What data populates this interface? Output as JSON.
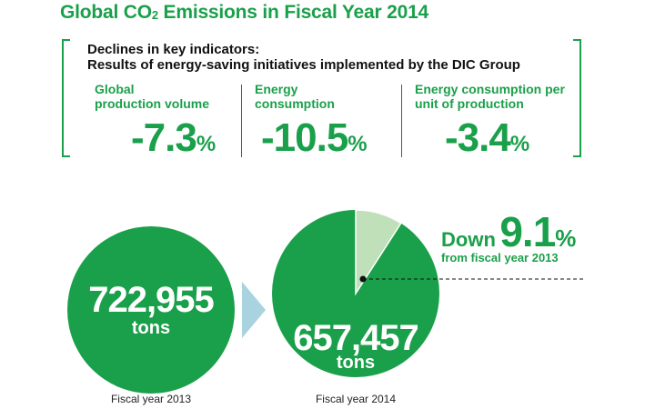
{
  "title": {
    "main": "Global CO",
    "subscript": "2",
    "rest": " Emissions in Fiscal Year 2014"
  },
  "box": {
    "heading_line1": "Declines in key indicators:",
    "heading_line2": "Results of energy-saving initiatives implemented by the DIC Group",
    "indicators": [
      {
        "label_line1": "Global",
        "label_line2": "production volume",
        "value": "-7.3",
        "unit": "%"
      },
      {
        "label_line1": "Energy",
        "label_line2": "consumption",
        "value": "-10.5",
        "unit": "%"
      },
      {
        "label_line1": "Energy consumption per",
        "label_line2": "unit of production",
        "value": "-3.4",
        "unit": "%"
      }
    ]
  },
  "comparison": {
    "down_word": "Down",
    "down_value": "9.1",
    "down_unit": "%",
    "from_text": "from fiscal year 2013",
    "fy2013": {
      "value": "722,955",
      "unit": "tons",
      "caption": "Fiscal year 2013"
    },
    "fy2014": {
      "value": "657,457",
      "unit": "tons",
      "caption": "Fiscal year 2014"
    },
    "reduction_fraction": 0.091
  },
  "colors": {
    "green": "#1aa04a",
    "light_green": "#bfe0b8",
    "arrow": "#a9d3df"
  }
}
